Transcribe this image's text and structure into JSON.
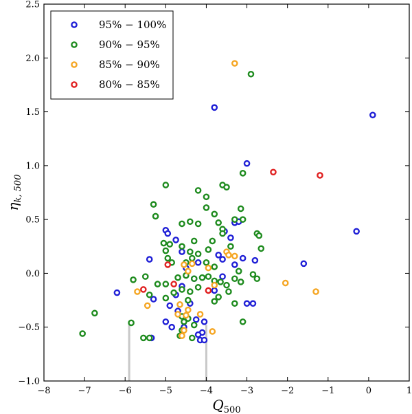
{
  "chart_data": {
    "type": "scatter",
    "title": "",
    "xlabel": "Q",
    "xlabel_sub": "500",
    "ylabel": "η",
    "ylabel_sub": "k, 500",
    "xlim": [
      -8,
      1
    ],
    "ylim": [
      -1.0,
      2.5
    ],
    "x_ticks": [
      -8,
      -7,
      -6,
      -5,
      -4,
      -3,
      -2,
      -1,
      0,
      1
    ],
    "x_tick_labels": [
      "−8",
      "−7",
      "−6",
      "−5",
      "−4",
      "−3",
      "−2",
      "−1",
      "0",
      "1"
    ],
    "y_ticks": [
      -1.0,
      -0.5,
      0.0,
      0.5,
      1.0,
      1.5,
      2.0,
      2.5
    ],
    "y_tick_labels": [
      "−1.0",
      "−0.5",
      "0.0",
      "0.5",
      "1.0",
      "1.5",
      "2.0",
      "2.5"
    ],
    "grid": false,
    "legend_position": "top-left",
    "series": [
      {
        "name": "95% − 100%",
        "color": "#1f1fd6",
        "points": [
          [
            -3.8,
            1.54
          ],
          [
            0.1,
            1.47
          ],
          [
            -3.0,
            1.02
          ],
          [
            -0.3,
            0.39
          ],
          [
            -1.6,
            0.09
          ],
          [
            -6.2,
            -0.18
          ],
          [
            -5.4,
            0.13
          ],
          [
            -5.0,
            0.4
          ],
          [
            -4.95,
            0.37
          ],
          [
            -4.75,
            0.31
          ],
          [
            -4.6,
            0.2
          ],
          [
            -3.3,
            0.47
          ],
          [
            -3.2,
            0.48
          ],
          [
            -3.4,
            0.33
          ],
          [
            -3.7,
            0.17
          ],
          [
            -3.6,
            0.13
          ],
          [
            -3.3,
            0.08
          ],
          [
            -3.1,
            0.14
          ],
          [
            -2.8,
            0.12
          ],
          [
            -4.2,
            0.1
          ],
          [
            -4.5,
            0.05
          ],
          [
            -4.3,
            -0.05
          ],
          [
            -4.6,
            -0.12
          ],
          [
            -4.75,
            -0.2
          ],
          [
            -4.4,
            -0.28
          ],
          [
            -4.9,
            -0.3
          ],
          [
            -4.7,
            -0.35
          ],
          [
            -5.0,
            -0.45
          ],
          [
            -4.85,
            -0.5
          ],
          [
            -4.25,
            -0.43
          ],
          [
            -4.05,
            -0.45
          ],
          [
            -4.1,
            -0.55
          ],
          [
            -4.15,
            -0.62
          ],
          [
            -4.05,
            -0.62
          ],
          [
            -4.2,
            -0.57
          ],
          [
            -3.8,
            -0.16
          ],
          [
            -3.6,
            -0.03
          ],
          [
            -3.0,
            -0.28
          ],
          [
            -2.85,
            -0.28
          ],
          [
            -5.3,
            -0.24
          ],
          [
            -5.35,
            -0.6
          ],
          [
            -4.55,
            -0.5
          ],
          [
            -3.55,
            0.39
          ]
        ]
      },
      {
        "name": "90% − 95%",
        "color": "#1e8b1e",
        "points": [
          [
            -2.9,
            1.85
          ],
          [
            -3.1,
            0.93
          ],
          [
            -5.0,
            0.82
          ],
          [
            -3.6,
            0.82
          ],
          [
            -3.5,
            0.8
          ],
          [
            -4.2,
            0.77
          ],
          [
            -4.0,
            0.71
          ],
          [
            -5.3,
            0.64
          ],
          [
            -4.0,
            0.61
          ],
          [
            -3.15,
            0.6
          ],
          [
            -5.25,
            0.53
          ],
          [
            -3.8,
            0.55
          ],
          [
            -4.4,
            0.48
          ],
          [
            -4.6,
            0.46
          ],
          [
            -4.2,
            0.46
          ],
          [
            -3.7,
            0.47
          ],
          [
            -3.3,
            0.5
          ],
          [
            -3.1,
            0.5
          ],
          [
            -3.6,
            0.41
          ],
          [
            -3.6,
            0.37
          ],
          [
            -2.75,
            0.37
          ],
          [
            -2.7,
            0.35
          ],
          [
            -2.65,
            0.23
          ],
          [
            -5.05,
            0.28
          ],
          [
            -4.9,
            0.27
          ],
          [
            -5.0,
            0.21
          ],
          [
            -4.6,
            0.25
          ],
          [
            -4.3,
            0.3
          ],
          [
            -4.4,
            0.2
          ],
          [
            -4.2,
            0.18
          ],
          [
            -3.95,
            0.22
          ],
          [
            -3.85,
            0.3
          ],
          [
            -3.4,
            0.25
          ],
          [
            -4.95,
            0.14
          ],
          [
            -4.85,
            0.1
          ],
          [
            -4.5,
            0.1
          ],
          [
            -4.35,
            0.14
          ],
          [
            -4.0,
            0.1
          ],
          [
            -3.8,
            0.06
          ],
          [
            -3.2,
            0.02
          ],
          [
            -2.85,
            -0.01
          ],
          [
            -2.75,
            -0.05
          ],
          [
            -5.8,
            -0.06
          ],
          [
            -5.5,
            -0.03
          ],
          [
            -5.2,
            -0.1
          ],
          [
            -5.0,
            -0.1
          ],
          [
            -4.7,
            -0.04
          ],
          [
            -4.5,
            -0.02
          ],
          [
            -4.3,
            -0.05
          ],
          [
            -4.1,
            -0.04
          ],
          [
            -3.95,
            -0.03
          ],
          [
            -3.8,
            -0.07
          ],
          [
            -3.65,
            -0.08
          ],
          [
            -3.5,
            -0.11
          ],
          [
            -3.3,
            -0.05
          ],
          [
            -3.15,
            -0.08
          ],
          [
            -5.4,
            -0.2
          ],
          [
            -5.0,
            -0.23
          ],
          [
            -4.8,
            -0.18
          ],
          [
            -4.6,
            -0.15
          ],
          [
            -4.4,
            -0.17
          ],
          [
            -4.2,
            -0.13
          ],
          [
            -3.7,
            -0.22
          ],
          [
            -3.45,
            -0.17
          ],
          [
            -3.3,
            -0.28
          ],
          [
            -4.45,
            -0.25
          ],
          [
            -3.8,
            -0.26
          ],
          [
            -6.75,
            -0.37
          ],
          [
            -4.6,
            -0.4
          ],
          [
            -4.45,
            -0.42
          ],
          [
            -4.55,
            -0.45
          ],
          [
            -4.3,
            -0.48
          ],
          [
            -3.1,
            -0.45
          ],
          [
            -5.85,
            -0.46
          ],
          [
            -7.05,
            -0.56
          ],
          [
            -4.6,
            -0.53
          ],
          [
            -4.65,
            -0.58
          ],
          [
            -4.35,
            -0.6
          ],
          [
            -5.55,
            -0.6
          ],
          [
            -5.4,
            -0.6
          ]
        ]
      },
      {
        "name": "85% − 90%",
        "color": "#f5a623",
        "points": [
          [
            -3.3,
            1.95
          ],
          [
            -3.5,
            0.2
          ],
          [
            -3.45,
            0.17
          ],
          [
            -3.3,
            0.16
          ],
          [
            -4.55,
            0.08
          ],
          [
            -4.35,
            0.09
          ],
          [
            -3.95,
            0.05
          ],
          [
            -4.45,
            0.02
          ],
          [
            -5.7,
            -0.17
          ],
          [
            -5.45,
            -0.3
          ],
          [
            -4.65,
            -0.29
          ],
          [
            -4.45,
            -0.34
          ],
          [
            -4.7,
            -0.38
          ],
          [
            -4.5,
            -0.39
          ],
          [
            -4.15,
            -0.38
          ],
          [
            -4.55,
            -0.53
          ],
          [
            -4.6,
            -0.58
          ],
          [
            -3.85,
            -0.54
          ],
          [
            -3.8,
            -0.11
          ],
          [
            -2.05,
            -0.09
          ],
          [
            -1.3,
            -0.17
          ]
        ]
      },
      {
        "name": "80% − 85%",
        "color": "#e02020",
        "points": [
          [
            -2.35,
            0.94
          ],
          [
            -1.2,
            0.91
          ],
          [
            -4.95,
            0.08
          ],
          [
            -4.8,
            -0.1
          ],
          [
            -5.55,
            -0.15
          ],
          [
            -3.95,
            -0.16
          ]
        ]
      }
    ],
    "vertical_lines": [
      {
        "x": -5.9,
        "y_from": -1.0,
        "y_to": -0.48,
        "color": "#c8c8c8"
      },
      {
        "x": -4.0,
        "y_from": -1.0,
        "y_to": -0.48,
        "color": "#c8c8c8"
      }
    ]
  }
}
